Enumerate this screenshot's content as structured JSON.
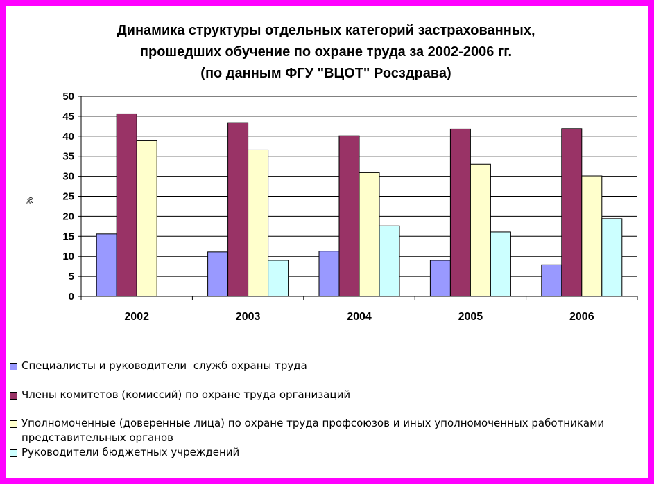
{
  "chart_data": {
    "type": "bar",
    "title_lines": [
      "Динамика структуры отдельных категорий застрахованных,",
      "прошедших обучение по охране труда за 2002-2006 гг.",
      "(по данным ФГУ \"ВЦОТ\" Росздрава)"
    ],
    "ylabel": "%",
    "xlabel": "",
    "ylim": [
      0,
      50
    ],
    "yticks": [
      "0",
      "5",
      "10",
      "15",
      "20",
      "25",
      "30",
      "35",
      "40",
      "45",
      "50"
    ],
    "grid": true,
    "legend_position": "bottom",
    "categories": [
      "2002",
      "2003",
      "2004",
      "2005",
      "2006"
    ],
    "series": [
      {
        "name": "Специалисты и руководители  служб охраны труда",
        "color": "#9999ff",
        "values": [
          15.6,
          11.1,
          11.3,
          9.0,
          7.9
        ]
      },
      {
        "name": "Члены комитетов (комиссий) по охране труда организаций",
        "color": "#993366",
        "values": [
          45.6,
          43.4,
          40.1,
          41.8,
          41.9
        ]
      },
      {
        "name": "Уполномоченные (доверенные лица) по охране труда профсоюзов и иных уполномоченных работниками представительных органов",
        "name_line2": "представительных органов",
        "name_line1": "Уполномоченные (доверенные лица) по охране труда профсоюзов и иных уполномоченных работниками",
        "color": "#ffffcc",
        "values": [
          39.0,
          36.6,
          30.9,
          33.0,
          30.1
        ]
      },
      {
        "name": "Руководители бюджетных учреждений",
        "color": "#ccffff",
        "values": [
          null,
          9.0,
          17.6,
          16.1,
          19.4
        ]
      }
    ]
  }
}
